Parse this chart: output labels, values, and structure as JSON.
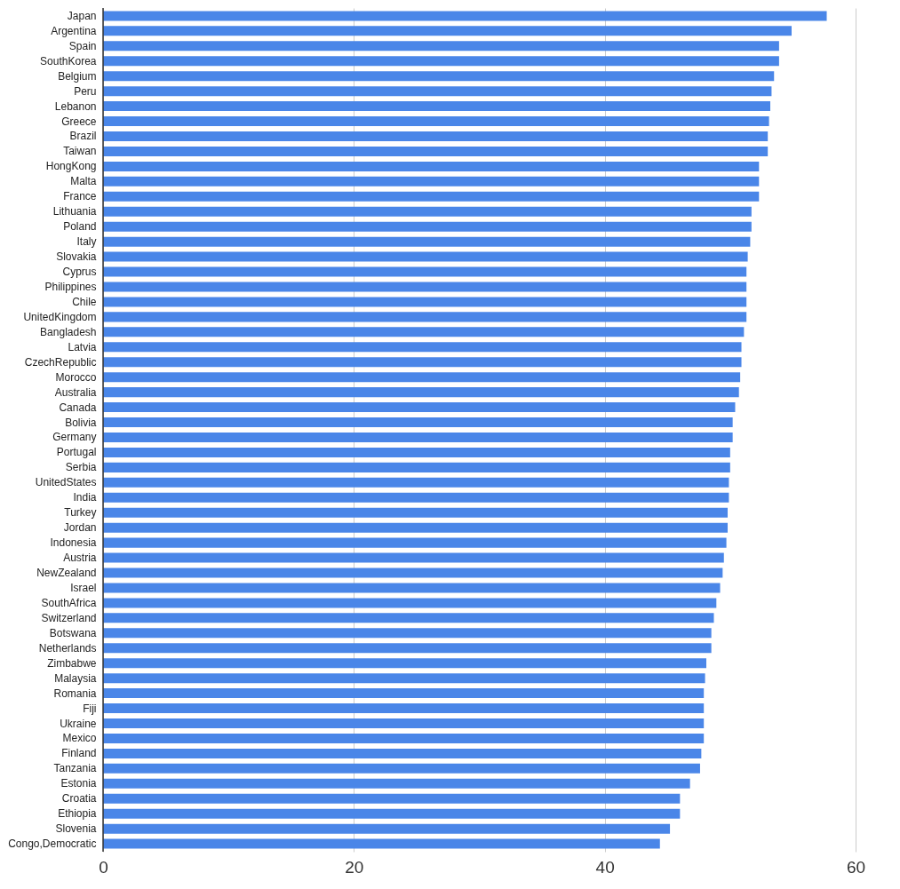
{
  "chart_data": {
    "type": "bar",
    "orientation": "horizontal",
    "categories": [
      "Japan",
      "Argentina",
      "Spain",
      "SouthKorea",
      "Belgium",
      "Peru",
      "Lebanon",
      "Greece",
      "Brazil",
      "Taiwan",
      "HongKong",
      "Malta",
      "France",
      "Lithuania",
      "Poland",
      "Italy",
      "Slovakia",
      "Cyprus",
      "Philippines",
      "Chile",
      "UnitedKingdom",
      "Bangladesh",
      "Latvia",
      "CzechRepublic",
      "Morocco",
      "Australia",
      "Canada",
      "Bolivia",
      "Germany",
      "Portugal",
      "Serbia",
      "UnitedStates",
      "India",
      "Turkey",
      "Jordan",
      "Indonesia",
      "Austria",
      "NewZealand",
      "Israel",
      "SouthAfrica",
      "Switzerland",
      "Botswana",
      "Netherlands",
      "Zimbabwe",
      "Malaysia",
      "Romania",
      "Fiji",
      "Ukraine",
      "Mexico",
      "Finland",
      "Tanzania",
      "Estonia",
      "Croatia",
      "Ethiopia",
      "Slovenia",
      "Congo,Democratic"
    ],
    "values": [
      57.7,
      54.9,
      53.9,
      53.9,
      53.5,
      53.3,
      53.2,
      53.1,
      53.0,
      53.0,
      52.3,
      52.3,
      52.3,
      51.7,
      51.7,
      51.6,
      51.4,
      51.3,
      51.3,
      51.3,
      51.3,
      51.1,
      50.9,
      50.9,
      50.8,
      50.7,
      50.4,
      50.2,
      50.2,
      50.0,
      50.0,
      49.9,
      49.9,
      49.8,
      49.8,
      49.7,
      49.5,
      49.4,
      49.2,
      48.9,
      48.7,
      48.5,
      48.5,
      48.1,
      48.0,
      47.9,
      47.9,
      47.9,
      47.9,
      47.7,
      47.6,
      46.8,
      46.0,
      46.0,
      45.2,
      44.4
    ],
    "color": "#4a86e8",
    "xlim": [
      0,
      60
    ],
    "xticks": [
      0,
      20,
      40,
      60
    ],
    "grid": "x"
  }
}
